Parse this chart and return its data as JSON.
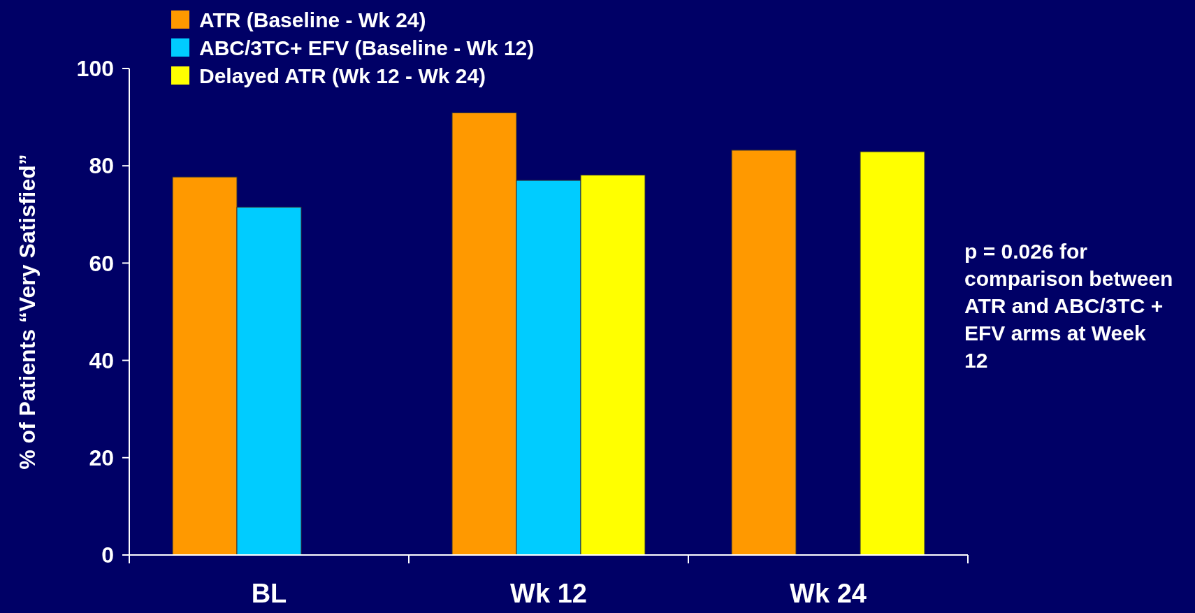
{
  "chart_data": {
    "type": "bar",
    "ylabel": "% of Patients “Very Satisfied”",
    "categories": [
      "BL",
      "Wk 12",
      "Wk 24"
    ],
    "series": [
      {
        "name": "ATR (Baseline - Wk 24)",
        "color": "#ff9900",
        "values": [
          77.7,
          90.9,
          83.2
        ]
      },
      {
        "name": "ABC/3TC+ EFV (Baseline - Wk 12)",
        "color": "#00ccff",
        "values": [
          71.5,
          77,
          null
        ]
      },
      {
        "name": "Delayed ATR (Wk 12 - Wk 24)",
        "color": "#ffff00",
        "values": [
          null,
          78.1,
          82.9
        ]
      }
    ],
    "ylim": [
      0,
      100
    ],
    "yticks": [
      0,
      20,
      40,
      60,
      80,
      100
    ],
    "legend": "top left",
    "grid": false,
    "annotations": [
      "p = 0.026 for comparison between ATR and ABC/3TC + EFV arms at Week 12"
    ]
  }
}
